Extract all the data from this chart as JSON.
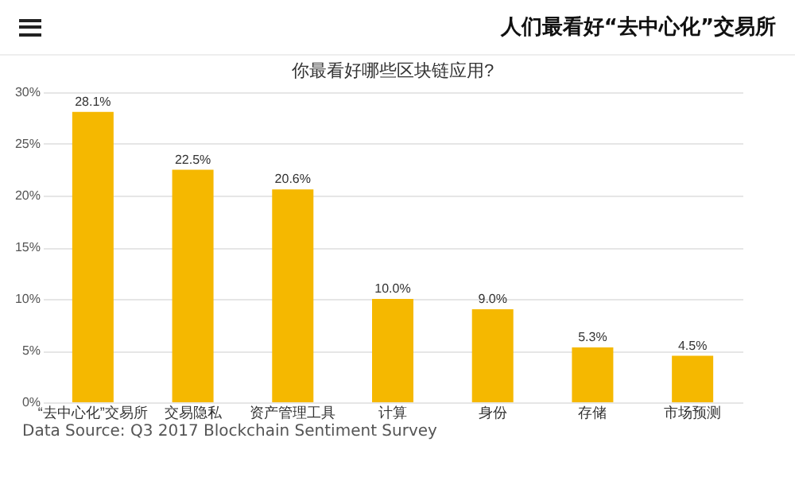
{
  "chart_data": {
    "type": "bar",
    "title": "人们最看好“去中心化”交易所",
    "subtitle": "你最看好哪些区块链应用?",
    "categories": [
      "“去中心化”交易所",
      "交易隐私",
      "资产管理工具",
      "计算",
      "身份",
      "存储",
      "市场预测"
    ],
    "values": [
      28.1,
      22.5,
      20.6,
      10.0,
      9.0,
      5.3,
      4.5
    ],
    "value_labels": [
      "28.1%",
      "22.5%",
      "20.6%",
      "10.0%",
      "9.0%",
      "5.3%",
      "4.5%"
    ],
    "color": "#f5b800",
    "ylim": [
      0,
      30
    ],
    "yticks": [
      {
        "value": 0,
        "label": "0%"
      },
      {
        "value": 5,
        "label": "5%"
      },
      {
        "value": 10,
        "label": "10%"
      },
      {
        "value": 15,
        "label": "15%"
      },
      {
        "value": 20,
        "label": "20%"
      },
      {
        "value": 25,
        "label": "25%"
      },
      {
        "value": 30,
        "label": "30%"
      }
    ],
    "grid": "y",
    "annotations": [
      "Data Source: Q3 2017 Blockchain Sentiment Survey"
    ]
  }
}
